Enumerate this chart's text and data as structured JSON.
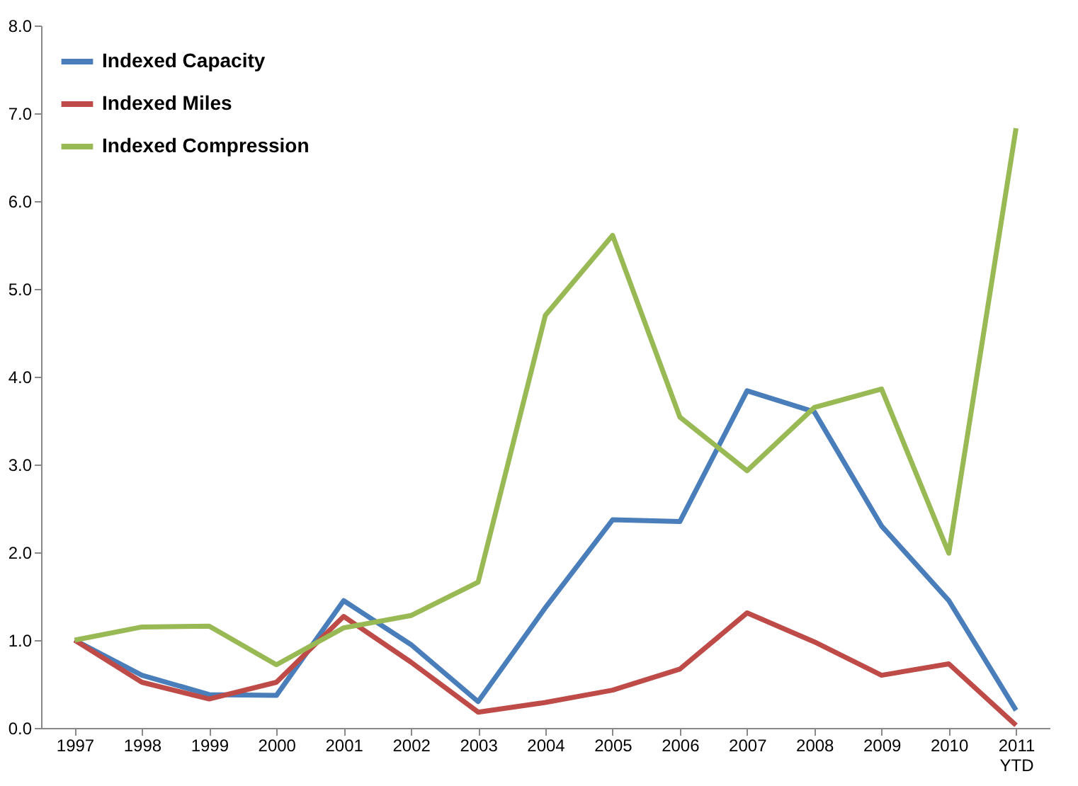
{
  "chart_data": {
    "type": "line",
    "categories": [
      "1997",
      "1998",
      "1999",
      "2000",
      "2001",
      "2002",
      "2003",
      "2004",
      "2005",
      "2006",
      "2007",
      "2008",
      "2009",
      "2010",
      "2011 YTD"
    ],
    "series": [
      {
        "name": "Indexed Capacity",
        "color": "#4a7ebb",
        "values": [
          1.0,
          0.6,
          0.38,
          0.37,
          1.45,
          0.95,
          0.3,
          1.37,
          2.37,
          2.35,
          3.84,
          3.6,
          2.3,
          1.45,
          0.2
        ]
      },
      {
        "name": "Indexed Miles",
        "color": "#be4b48",
        "values": [
          1.0,
          0.52,
          0.33,
          0.52,
          1.27,
          0.75,
          0.18,
          0.29,
          0.43,
          0.67,
          1.31,
          0.98,
          0.6,
          0.73,
          0.03
        ]
      },
      {
        "name": "Indexed Compression",
        "color": "#98b954",
        "values": [
          1.0,
          1.15,
          1.16,
          0.72,
          1.14,
          1.28,
          1.66,
          4.7,
          5.61,
          3.54,
          2.93,
          3.65,
          3.86,
          1.99,
          6.83
        ]
      }
    ],
    "ylim": [
      0,
      8
    ],
    "yticks": [
      {
        "value": 0,
        "label": "0.0"
      },
      {
        "value": 1,
        "label": "1.0"
      },
      {
        "value": 2,
        "label": "2.0"
      },
      {
        "value": 3,
        "label": "3.0"
      },
      {
        "value": 4,
        "label": "4.0"
      },
      {
        "value": 5,
        "label": "5.0"
      },
      {
        "value": 6,
        "label": "6.0"
      },
      {
        "value": 7,
        "label": "7.0"
      },
      {
        "value": 8,
        "label": "8.0"
      }
    ],
    "grid": false,
    "legend": "top left",
    "marker": "none",
    "line_style": "solid"
  }
}
